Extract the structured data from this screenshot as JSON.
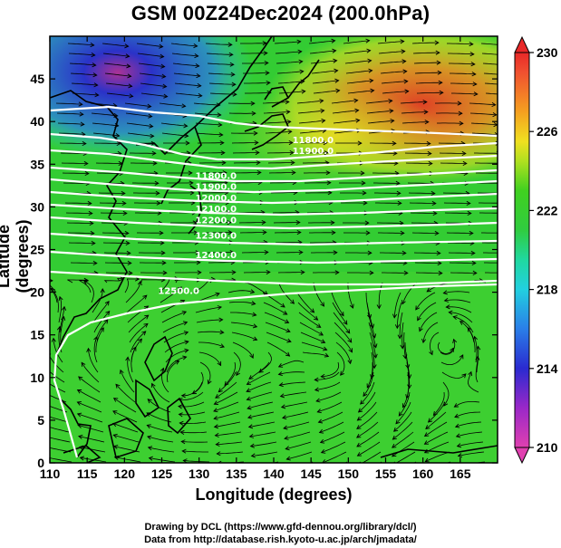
{
  "title": "GSM 00Z24Dec2024 (200.0hPa)",
  "xlabel": "Longitude (degrees)",
  "ylabel": "Latitude  (degrees)",
  "credits": [
    "Drawing by DCL (https://www.gfd-dennou.org/library/dcl/)",
    "Data from http://database.rish.kyoto-u.ac.jp/arch/jmadata/"
  ],
  "colors": {
    "background_field": "#33cc33",
    "cold_region": "#2b3fd6",
    "warm_region": "#ef5a1e",
    "contour": "#ffffff",
    "coastline": "#000000",
    "streamline": "#000000"
  },
  "chart_data": {
    "type": "map",
    "map_type": "temperature shading with geopotential height contours and wind streamlines",
    "xlim": [
      110,
      170
    ],
    "ylim": [
      0,
      50
    ],
    "x_ticks": [
      "110",
      "115",
      "120",
      "125",
      "130",
      "135",
      "140",
      "145",
      "150",
      "155",
      "160",
      "165"
    ],
    "y_ticks": [
      "0",
      "5",
      "10",
      "15",
      "20",
      "25",
      "30",
      "35",
      "40",
      "45"
    ],
    "colorbar": {
      "min": 210,
      "max": 230,
      "tick_labels": [
        "210",
        "214",
        "218",
        "222",
        "226",
        "230"
      ],
      "stops": [
        {
          "value": 210,
          "color": "#e040b0"
        },
        {
          "value": 212,
          "color": "#9a28c8"
        },
        {
          "value": 214,
          "color": "#2a2ad0"
        },
        {
          "value": 216,
          "color": "#2a7ee8"
        },
        {
          "value": 218,
          "color": "#22d0e0"
        },
        {
          "value": 219.5,
          "color": "#20d8a0"
        },
        {
          "value": 221,
          "color": "#30cc40"
        },
        {
          "value": 223,
          "color": "#40d020"
        },
        {
          "value": 224.5,
          "color": "#b0e020"
        },
        {
          "value": 225.5,
          "color": "#f0e020"
        },
        {
          "value": 227,
          "color": "#f5a020"
        },
        {
          "value": 229,
          "color": "#f05030"
        },
        {
          "value": 230,
          "color": "#e82828"
        }
      ]
    },
    "contour_labels": [
      {
        "text": "11800.0",
        "lon": 142.5,
        "lat": 37.5
      },
      {
        "text": "11900.0",
        "lon": 142.5,
        "lat": 36.2
      },
      {
        "text": "11800.0",
        "lon": 129.5,
        "lat": 33.3
      },
      {
        "text": "11900.0",
        "lon": 129.5,
        "lat": 32.0
      },
      {
        "text": "12000.0",
        "lon": 129.5,
        "lat": 30.7
      },
      {
        "text": "12100.0",
        "lon": 129.5,
        "lat": 29.4
      },
      {
        "text": "12200.0",
        "lon": 129.5,
        "lat": 28.1
      },
      {
        "text": "12300.0",
        "lon": 129.5,
        "lat": 26.3
      },
      {
        "text": "12400.0",
        "lon": 129.5,
        "lat": 24.0
      },
      {
        "text": "12500.0",
        "lon": 124.5,
        "lat": 19.8
      }
    ]
  }
}
